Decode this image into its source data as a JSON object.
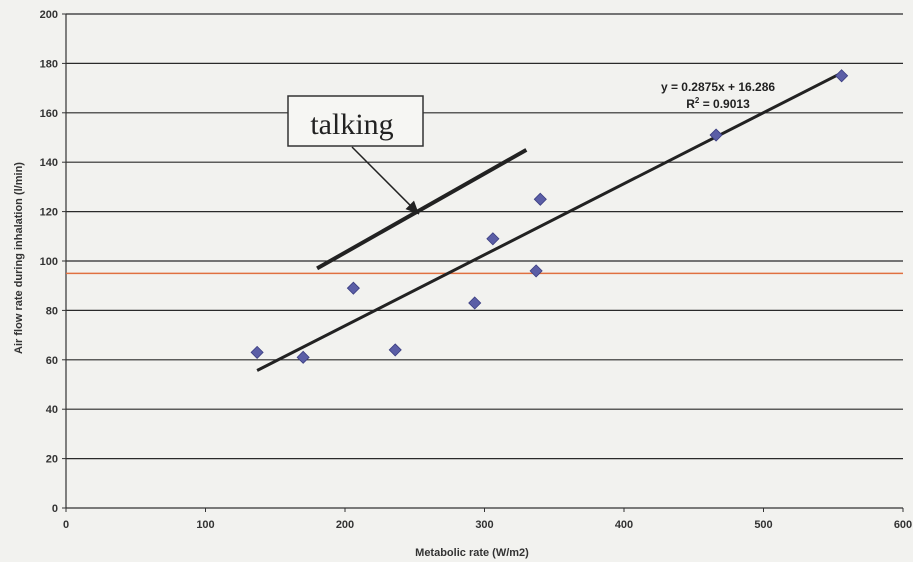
{
  "chart_data": {
    "type": "scatter",
    "title": "",
    "xlabel": "Metabolic rate (W/m2)",
    "ylabel": "Air flow rate during inhalation (l/min)",
    "xlim": [
      0,
      600
    ],
    "ylim": [
      0,
      200
    ],
    "x_ticks": [
      0,
      100,
      200,
      300,
      400,
      500,
      600
    ],
    "y_ticks": [
      0,
      20,
      40,
      60,
      80,
      100,
      120,
      140,
      160,
      180,
      200
    ],
    "grid": "horizontal",
    "series": [
      {
        "marker": "diamond",
        "color": "#5b5ea6",
        "points": [
          {
            "x": 137,
            "y": 63
          },
          {
            "x": 170,
            "y": 61
          },
          {
            "x": 206,
            "y": 89
          },
          {
            "x": 236,
            "y": 64
          },
          {
            "x": 293,
            "y": 83
          },
          {
            "x": 306,
            "y": 109
          },
          {
            "x": 337,
            "y": 96
          },
          {
            "x": 340,
            "y": 125
          },
          {
            "x": 466,
            "y": 151
          },
          {
            "x": 556,
            "y": 175
          }
        ]
      }
    ],
    "trendline": {
      "slope": 0.2875,
      "intercept": 16.286,
      "x_range": [
        137,
        556
      ],
      "equation": "y = 0.2875x + 16.286",
      "r2_prefix": "R",
      "r2_sup": "2",
      "r2_value": " = 0.9013",
      "color": "#222222"
    },
    "reference_line": {
      "y": 95,
      "color": "#e07040"
    },
    "talking_line": {
      "x": [
        180,
        330
      ],
      "y": [
        97,
        145
      ],
      "color": "#222222"
    },
    "annotation": {
      "text": "talking",
      "arrow_to": {
        "x": 253,
        "y": 119
      }
    }
  }
}
